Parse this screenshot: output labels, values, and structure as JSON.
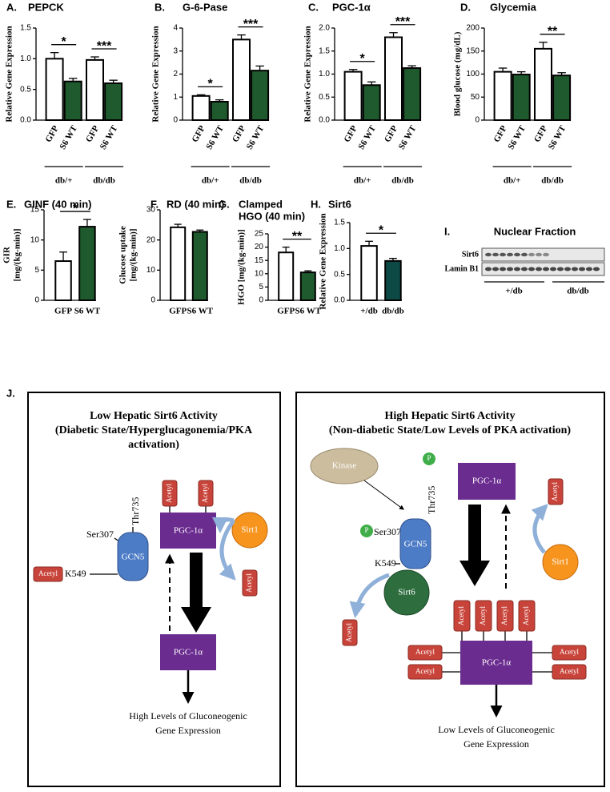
{
  "chart_data": [
    {
      "type": "bar",
      "label": "A.",
      "title": "PEPCK",
      "ylabel": "Relative Gene Expression",
      "categories": [
        "GFP",
        "S6 WT",
        "GFP",
        "S6 WT"
      ],
      "groups": [
        "db/+",
        "db/db"
      ],
      "values": [
        1.0,
        0.63,
        0.98,
        0.6
      ],
      "errors": [
        0.1,
        0.05,
        0.05,
        0.05
      ],
      "colors": [
        "#ffffff",
        "#1f5a2e",
        "#ffffff",
        "#1f5a2e"
      ],
      "significance": [
        "*",
        "***"
      ],
      "ylim": [
        0,
        1.5
      ],
      "yticks": [
        {
          "value": 0,
          "label": "0.0"
        },
        0.5,
        {
          "value": 1,
          "label": "1.0"
        },
        1.5
      ]
    },
    {
      "type": "bar",
      "label": "B.",
      "title": "G-6-Pase",
      "ylabel": "Relative Gene Expression",
      "categories": [
        "GFP",
        "S6 WT",
        "GFP",
        "S6 WT"
      ],
      "groups": [
        "db/+",
        "db/db"
      ],
      "values": [
        1.05,
        0.8,
        3.5,
        2.15
      ],
      "errors": [
        0.05,
        0.08,
        0.2,
        0.2
      ],
      "colors": [
        "#ffffff",
        "#1f5a2e",
        "#ffffff",
        "#1f5a2e"
      ],
      "significance": [
        "*",
        "***"
      ],
      "ylim": [
        0,
        4
      ],
      "yticks": [
        0,
        1,
        2,
        3,
        4
      ]
    },
    {
      "type": "bar",
      "label": "C.",
      "title": "PGC-1α",
      "ylabel": "Relative Gene Expression",
      "categories": [
        "GFP",
        "S6 WT",
        "GFP",
        "S6 WT"
      ],
      "groups": [
        "db/+",
        "db/db"
      ],
      "values": [
        1.05,
        0.76,
        1.8,
        1.13
      ],
      "errors": [
        0.05,
        0.07,
        0.1,
        0.05
      ],
      "colors": [
        "#ffffff",
        "#1f5a2e",
        "#ffffff",
        "#1f5a2e"
      ],
      "significance": [
        "*",
        "***"
      ],
      "ylim": [
        0,
        2
      ],
      "yticks": [
        {
          "value": 0,
          "label": "0.0"
        },
        0.5,
        {
          "value": 1,
          "label": "1.0"
        },
        1.5,
        {
          "value": 2,
          "label": "2.0"
        }
      ]
    },
    {
      "type": "bar",
      "label": "D.",
      "title": "Glycemia",
      "ylabel": "Blood glucose (mg/dL)",
      "categories": [
        "GFP",
        "S6 WT",
        "GFP",
        "S6 WT"
      ],
      "groups": [
        "db/+",
        "db/db"
      ],
      "values": [
        105,
        99,
        155,
        97
      ],
      "errors": [
        8,
        6,
        14,
        6
      ],
      "colors": [
        "#ffffff",
        "#1f5a2e",
        "#ffffff",
        "#1f5a2e"
      ],
      "significance": [
        null,
        "**"
      ],
      "ylim": [
        0,
        200
      ],
      "yticks": [
        0,
        50,
        100,
        150,
        200
      ]
    },
    {
      "type": "bar",
      "label": "E.",
      "title": "GINF (40 min)",
      "ylabel": [
        "GIR",
        "[mg/(kg-min)]"
      ],
      "categories": [
        "GFP",
        "S6 WT"
      ],
      "values": [
        6.5,
        12.2
      ],
      "errors": [
        1.5,
        1.2
      ],
      "colors": [
        "#ffffff",
        "#1f5a2e"
      ],
      "significance": [
        "*"
      ],
      "ylim": [
        0,
        15
      ],
      "yticks": [
        0,
        5,
        10,
        15
      ]
    },
    {
      "type": "bar",
      "label": "F.",
      "title": "RD (40 min)",
      "ylabel": [
        "Glucose uptake",
        "[mg/(kg-min)]"
      ],
      "categories": [
        "GFP",
        "S6 WT"
      ],
      "values": [
        24.2,
        22.7
      ],
      "errors": [
        1,
        0.6
      ],
      "colors": [
        "#ffffff",
        "#1f5a2e"
      ],
      "ylim": [
        0,
        30
      ],
      "yticks": [
        0,
        10,
        20,
        30
      ]
    },
    {
      "type": "bar",
      "label": "G.",
      "title": [
        "Clamped",
        "HGO (40 min)"
      ],
      "ylabel": "HGO [mg/(kg-min)]",
      "categories": [
        "GFP",
        "S6 WT"
      ],
      "values": [
        18,
        10.5
      ],
      "errors": [
        2,
        0.6
      ],
      "colors": [
        "#ffffff",
        "#1f5a2e"
      ],
      "significance": [
        "**"
      ],
      "ylim": [
        0,
        25
      ],
      "yticks": [
        0,
        5,
        10,
        15,
        20,
        25
      ]
    },
    {
      "type": "bar",
      "label": "H.",
      "title": "Sirt6",
      "ylabel": "Relative Gene Expression",
      "categories": [
        "+/db",
        "db/db"
      ],
      "values": [
        1.05,
        0.76
      ],
      "errors": [
        0.09,
        0.05
      ],
      "colors": [
        "#ffffff",
        "#0d4a45"
      ],
      "significance": [
        "*"
      ],
      "ylim": [
        0,
        1.5
      ],
      "yticks": [
        {
          "value": 0,
          "label": "0.0"
        },
        0.5,
        {
          "value": 1,
          "label": "1.0"
        },
        1.5
      ]
    }
  ],
  "blot": {
    "label": "I.",
    "title": "Nuclear Fraction",
    "rows": [
      "Sirt6",
      "Lamin B1"
    ],
    "groups": [
      "+/db",
      "db/db"
    ]
  },
  "diagram": {
    "label": "J.",
    "left": {
      "title": [
        "Low Hepatic Sirt6 Activity",
        "(Diabetic State/Hyperglucagonemia/PKA",
        "activation)"
      ],
      "pgc_top": "PGC-1α",
      "pgc_bottom": "PGC-1α",
      "gcn5": "GCN5",
      "thr": "Thr735",
      "ser": "Ser307",
      "lys": "K549",
      "sirt1": "Sirt1",
      "acetyl": [
        "Acetyl",
        "Acetyl",
        "Acetyl",
        "Acetyl"
      ],
      "output": [
        "High Levels of Gluconeogenic",
        "Gene Expression"
      ]
    },
    "right": {
      "title": [
        "High Hepatic Sirt6 Activity",
        "(Non-diabetic State/Low Levels of PKA activation)"
      ],
      "kinase": "Kinase",
      "phospho": [
        "P",
        "P"
      ],
      "thr": "Thr735",
      "ser": "Ser307",
      "lys": "K549",
      "gcn5": "GCN5",
      "sirt6": "Sirt6",
      "sirt1": "Sirt1",
      "pgc_top": "PGC-1α",
      "pgc_bottom": "PGC-1α",
      "acetyl": [
        "Acetyl",
        "Acetyl",
        "Acetyl",
        "Acetyl",
        "Acetyl",
        "Acetyl",
        "Acetyl",
        "Acetyl",
        "Acetyl",
        "Acetyl"
      ],
      "output": [
        "Low Levels of Gluconeogenic",
        "Gene Expression"
      ]
    }
  }
}
